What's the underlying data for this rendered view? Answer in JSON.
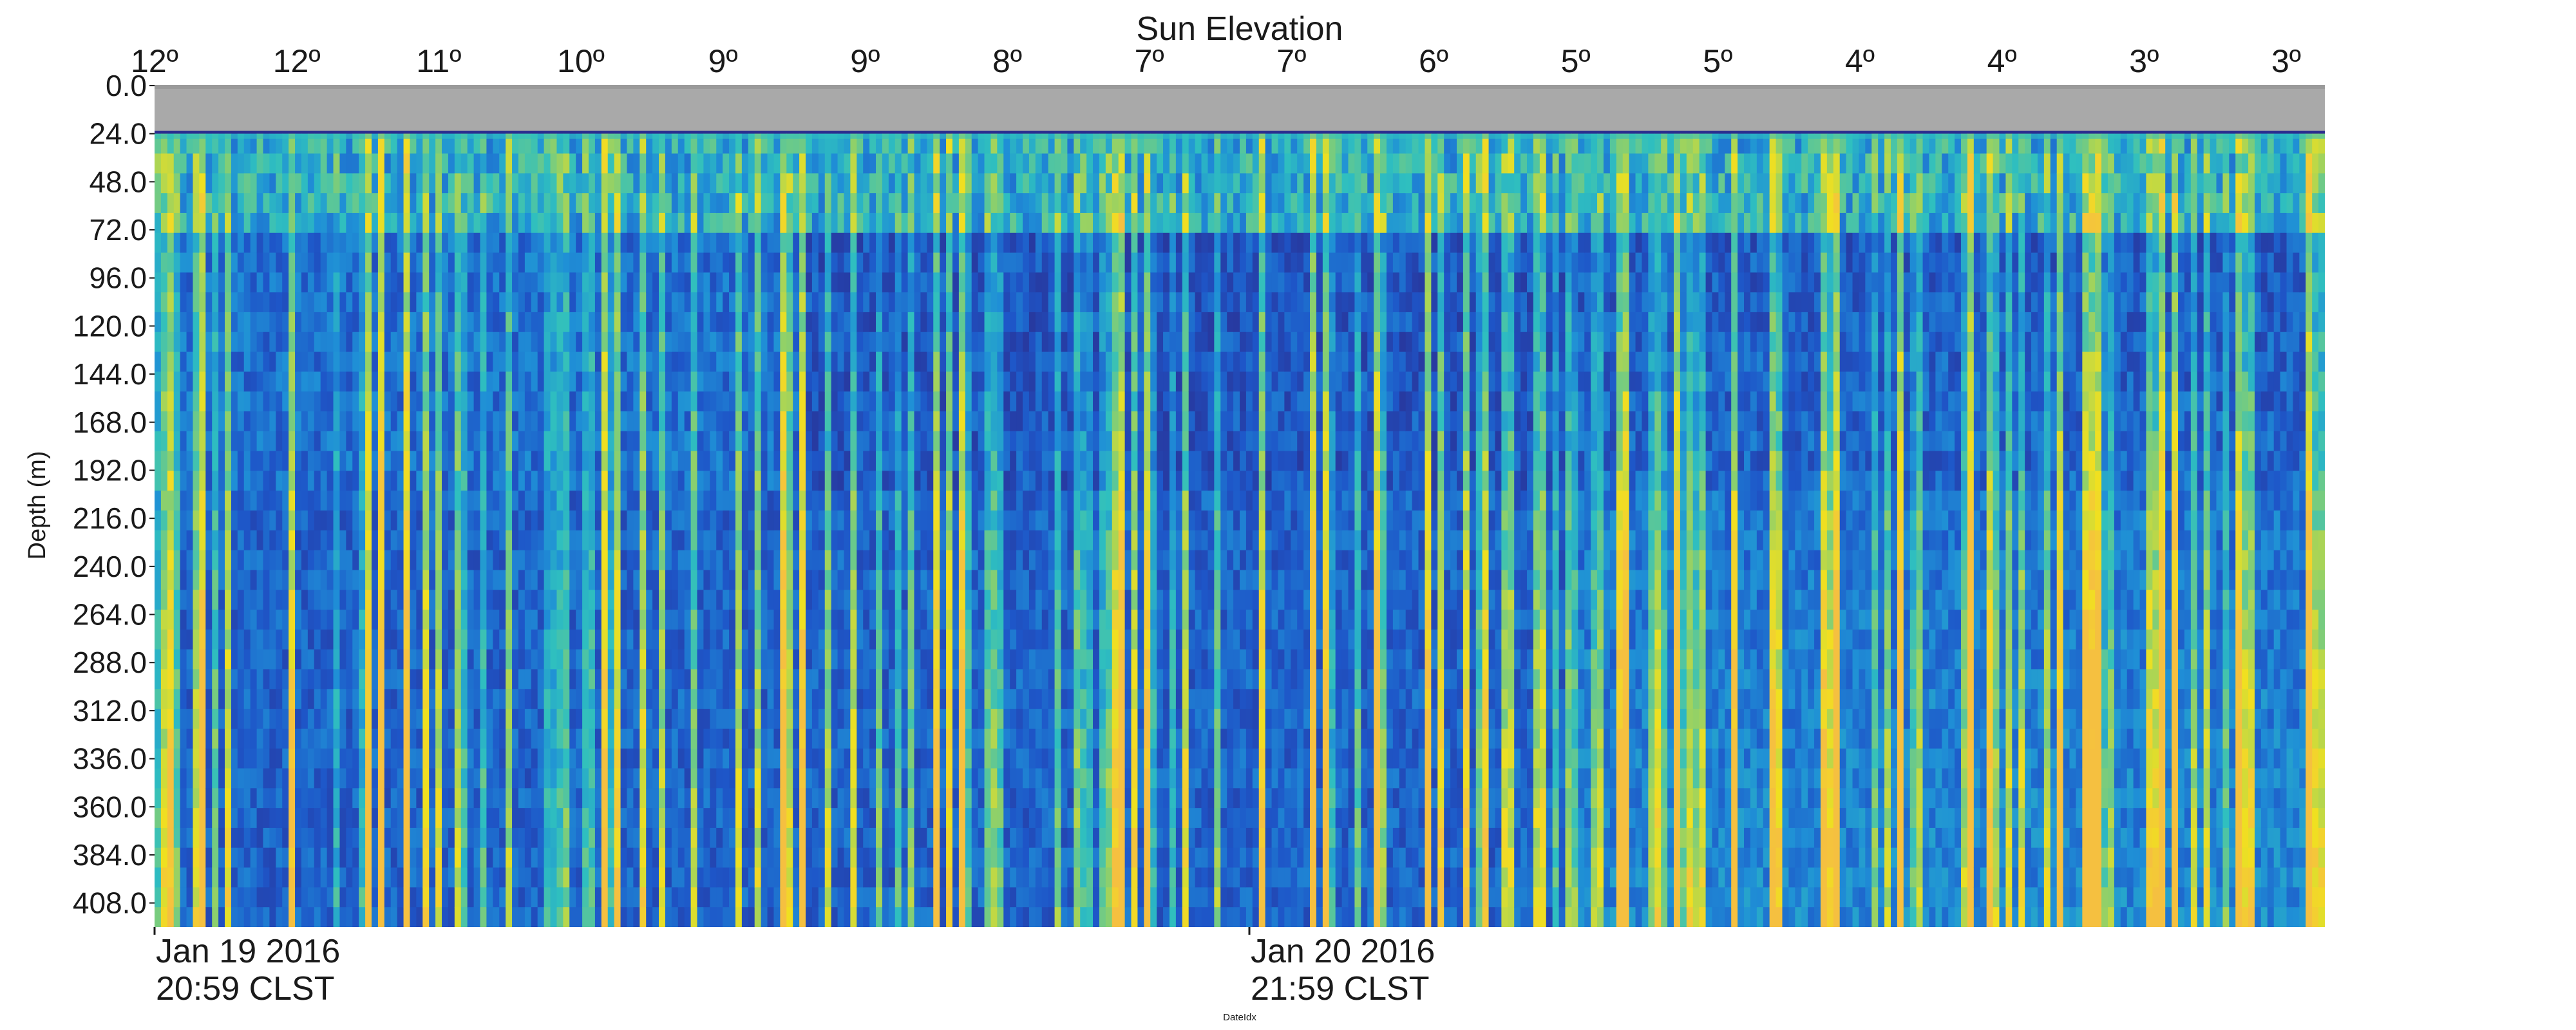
{
  "chart_data": {
    "type": "heatmap",
    "title": "Sun Elevation",
    "ylabel": "Depth (m)",
    "xlabel": "DateIdx",
    "y_ticks": [
      "0.0",
      "24.0",
      "48.0",
      "72.0",
      "96.0",
      "120.0",
      "144.0",
      "168.0",
      "192.0",
      "216.0",
      "240.0",
      "264.0",
      "288.0",
      "312.0",
      "336.0",
      "360.0",
      "384.0",
      "408.0"
    ],
    "ylim": [
      0,
      420
    ],
    "top_ticks": [
      "12º",
      "12º",
      "11º",
      "10º",
      "9º",
      "9º",
      "8º",
      "7º",
      "7º",
      "6º",
      "5º",
      "5º",
      "4º",
      "4º",
      "3º",
      "3º"
    ],
    "date_ticks": [
      {
        "date": "Jan 19 2016",
        "time": "20:59 CLST",
        "index": 0
      },
      {
        "date": "Jan 20 2016",
        "time": "21:59 CLST",
        "index": 0.5
      }
    ],
    "no_data_band": [
      0,
      24
    ],
    "colormap": [
      "#2b2d8f",
      "#1e56c8",
      "#1f8fd6",
      "#2fbfbf",
      "#8fd06a",
      "#f0e020",
      "#f5c040"
    ],
    "grid": false
  }
}
